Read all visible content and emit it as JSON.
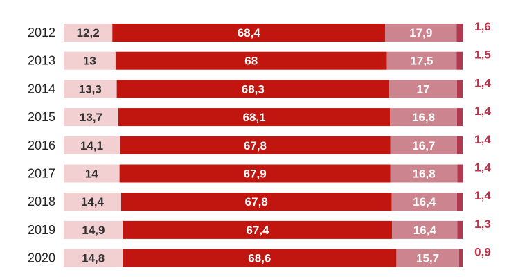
{
  "chart_data": {
    "type": "bar",
    "orientation": "horizontal",
    "stacked": true,
    "categories": [
      "2012",
      "2013",
      "2014",
      "2015",
      "2016",
      "2017",
      "2018",
      "2019",
      "2020"
    ],
    "series": [
      {
        "values": [
          12.2,
          13,
          13.3,
          13.7,
          14.1,
          14,
          14.4,
          14.9,
          14.8
        ],
        "labels": [
          "12,2",
          "13",
          "13,3",
          "13,7",
          "14,1",
          "14",
          "14,4",
          "14,9",
          "14,8"
        ],
        "color": "#f2cfd1",
        "label_color": "#333333"
      },
      {
        "values": [
          68.4,
          68,
          68.3,
          68.1,
          67.8,
          67.9,
          67.8,
          67.4,
          68.6
        ],
        "labels": [
          "68,4",
          "68",
          "68,3",
          "68,1",
          "67,8",
          "67,9",
          "67,8",
          "67,4",
          "68,6"
        ],
        "color": "#c0160f",
        "label_color": "#ffffff"
      },
      {
        "values": [
          17.9,
          17.5,
          17,
          16.8,
          16.7,
          16.8,
          16.4,
          16.4,
          15.7
        ],
        "labels": [
          "17,9",
          "17,5",
          "17",
          "16,8",
          "16,7",
          "16,8",
          "16,4",
          "16,4",
          "15,7"
        ],
        "color": "#cc858e",
        "label_color": "#ffffff"
      },
      {
        "values": [
          1.6,
          1.5,
          1.4,
          1.4,
          1.4,
          1.4,
          1.4,
          1.3,
          0.9
        ],
        "labels": [
          "1,6",
          "1,5",
          "1,4",
          "1,4",
          "1,4",
          "1,4",
          "1,4",
          "1,3",
          "0,9"
        ],
        "color": "#b23a50",
        "label_color": "#c03048"
      }
    ],
    "xlim": [
      0,
      100
    ],
    "title": "",
    "xlabel": "",
    "ylabel": "",
    "grid": false,
    "legend": "none",
    "last_segment_label_outside": true
  }
}
